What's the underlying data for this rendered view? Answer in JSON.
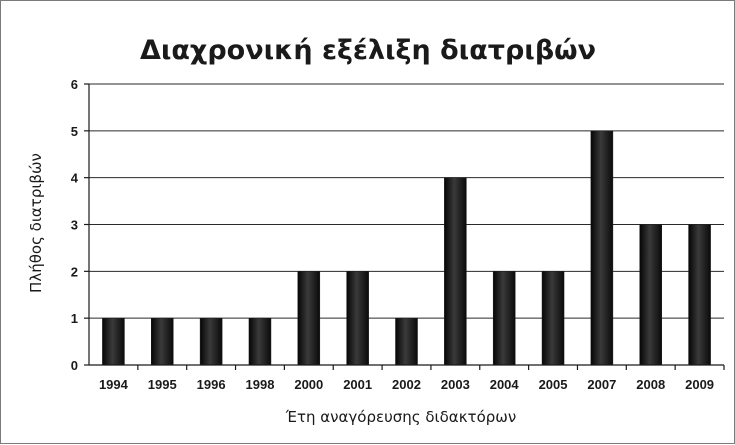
{
  "chart_data": {
    "type": "bar",
    "title": "Διαχρονική εξέλιξη διατριβών",
    "xlabel": "Έτη αναγόρευσης διδακτόρων",
    "ylabel": "Πλήθος διατριβών",
    "categories": [
      "1994",
      "1995",
      "1996",
      "1998",
      "2000",
      "2001",
      "2002",
      "2003",
      "2004",
      "2005",
      "2007",
      "2008",
      "2009"
    ],
    "values": [
      1,
      1,
      1,
      1,
      2,
      2,
      1,
      4,
      2,
      2,
      5,
      3,
      3
    ],
    "ylim": [
      0,
      6
    ],
    "yticks": [
      0,
      1,
      2,
      3,
      4,
      5,
      6
    ],
    "grid": true,
    "legend": "none",
    "bar_color": "#1c1c1c"
  }
}
